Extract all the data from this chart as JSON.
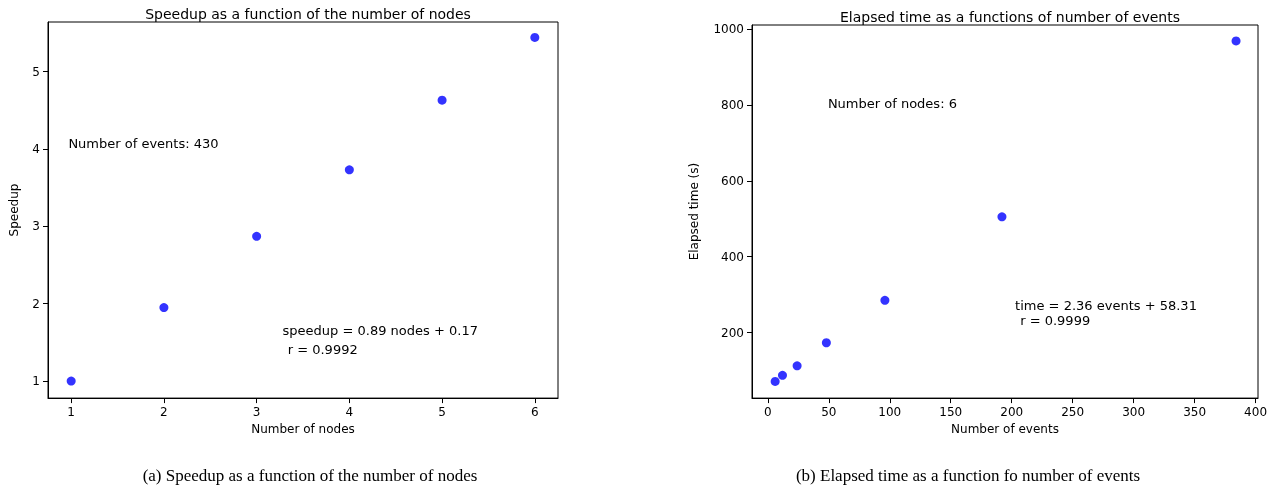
{
  "chart_data": [
    {
      "type": "scatter",
      "title": "Speedup as a function of the number of nodes",
      "xlabel": "Number of nodes",
      "ylabel": "Speedup",
      "x": [
        1,
        2,
        3,
        4,
        5,
        6
      ],
      "series": [
        {
          "color": "#0000ff",
          "values": [
            1.0,
            1.95,
            2.87,
            3.73,
            4.63,
            5.44
          ]
        }
      ],
      "xlim": [
        0.75,
        6.25
      ],
      "xticks": [
        1,
        2,
        3,
        4,
        5,
        6
      ],
      "ylim": [
        0.78,
        5.64
      ],
      "yticks": [
        1,
        2,
        3,
        4,
        5
      ],
      "grid": false,
      "marker": "circle",
      "annotations": [
        "Number of events: 430",
        "speedup = 0.89 nodes + 0.17",
        "r = 0.9992",
        "(a) Speedup as a function of the number of nodes"
      ]
    },
    {
      "type": "scatter",
      "title": "Elapsed time as a functions of number of events",
      "xlabel": "Number of events",
      "ylabel": "Elapsed time (s)",
      "x": [
        6,
        12,
        24,
        48,
        96,
        192,
        384
      ],
      "series": [
        {
          "color": "#0000ff",
          "values": [
            71,
            87,
            112,
            173,
            285,
            505,
            969
          ]
        }
      ],
      "xlim": [
        -13,
        402
      ],
      "xticks": [
        0,
        50,
        100,
        150,
        200,
        250,
        300,
        350,
        400
      ],
      "ylim": [
        27,
        1011
      ],
      "yticks": [
        200,
        400,
        600,
        800,
        1000
      ],
      "grid": false,
      "marker": "circle",
      "annotations": [
        "Number of nodes: 6",
        "time = 2.36 events + 58.31",
        "r = 0.9999",
        "(b) Elapsed time as a function fo number of events"
      ]
    }
  ]
}
